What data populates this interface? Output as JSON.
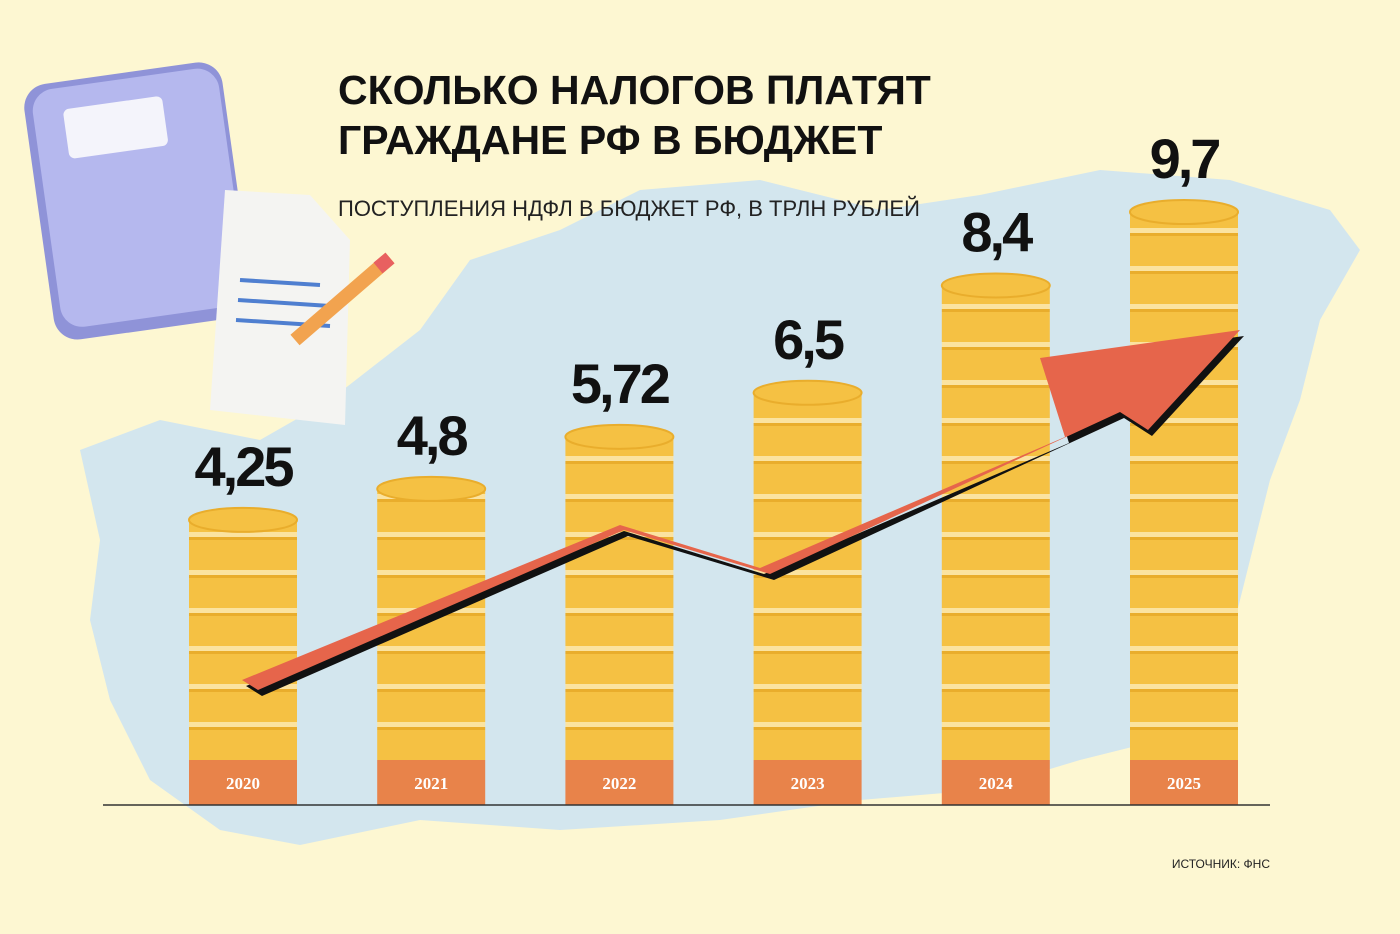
{
  "chart_data": {
    "type": "bar",
    "title": [
      "СКОЛЬКО НАЛОГОВ ПЛАТЯТ",
      "ГРАЖДАНЕ РФ В БЮДЖЕТ"
    ],
    "subtitle": "ПОСТУПЛЕНИЯ НДФЛ В БЮДЖЕТ РФ, В ТРЛН РУБЛЕЙ",
    "categories": [
      "2020",
      "2021",
      "2022",
      "2023",
      "2024",
      "2025"
    ],
    "values": [
      4.25,
      4.8,
      5.72,
      6.5,
      8.4,
      9.7
    ],
    "value_labels": [
      "4,25",
      "4,8",
      "5,72",
      "6,5",
      "8,4",
      "9,7"
    ],
    "color": "#f5c143",
    "source": "ИСТОЧНИК: ФНС"
  }
}
